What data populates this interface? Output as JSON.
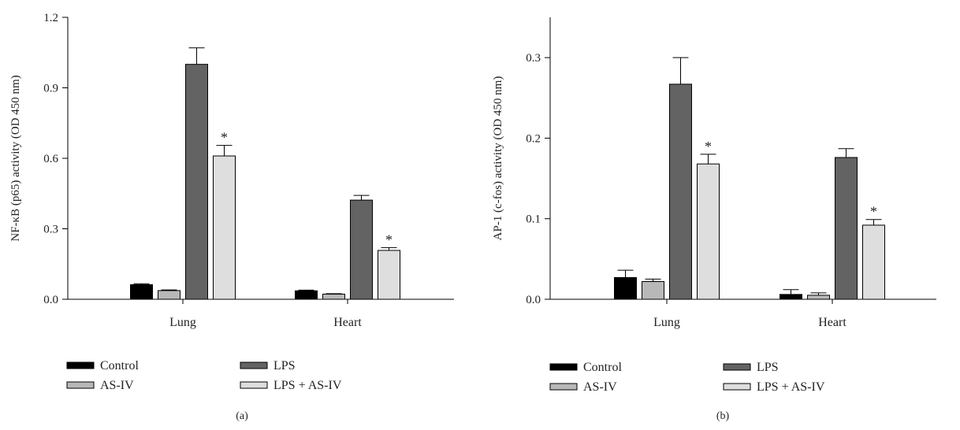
{
  "chart_data": [
    {
      "type": "bar",
      "panel_label": "(a)",
      "ylabel": "NF-κB (p65) activity (OD 450 nm)",
      "ylim": [
        0,
        1.2
      ],
      "yticks": [
        "0.0",
        "0.3",
        "0.6",
        "0.9",
        "1.2"
      ],
      "yticks_values": [
        0,
        0.3,
        0.6,
        0.9,
        1.2
      ],
      "categories": [
        "Lung",
        "Heart"
      ],
      "series": [
        {
          "name": "Control",
          "color": "#000000",
          "values": [
            0.062,
            0.036
          ],
          "errors": [
            0.004,
            0.003
          ],
          "significant": [
            false,
            false
          ]
        },
        {
          "name": "AS-IV",
          "color": "#b8b8b8",
          "values": [
            0.037,
            0.022
          ],
          "errors": [
            0.003,
            0.002
          ],
          "significant": [
            false,
            false
          ]
        },
        {
          "name": "LPS",
          "color": "#636363",
          "values": [
            1.0,
            0.422
          ],
          "errors": [
            0.07,
            0.02
          ],
          "significant": [
            false,
            false
          ]
        },
        {
          "name": "LPS + AS-IV",
          "color": "#dedede",
          "values": [
            0.61,
            0.208
          ],
          "errors": [
            0.045,
            0.012
          ],
          "significant": [
            true,
            true
          ]
        }
      ],
      "significance_marker": "*",
      "legend_placement": "bottom"
    },
    {
      "type": "bar",
      "panel_label": "(b)",
      "ylabel": "AP-1 (c-fos) activity (OD 450 nm)",
      "ylim": [
        0,
        0.35
      ],
      "yticks": [
        "0.0",
        "0.1",
        "0.2",
        "0.3"
      ],
      "yticks_values": [
        0,
        0.1,
        0.2,
        0.3
      ],
      "categories": [
        "Lung",
        "Heart"
      ],
      "series": [
        {
          "name": "Control",
          "color": "#000000",
          "values": [
            0.027,
            0.006
          ],
          "errors": [
            0.009,
            0.006
          ],
          "significant": [
            false,
            false
          ]
        },
        {
          "name": "AS-IV",
          "color": "#b8b8b8",
          "values": [
            0.022,
            0.005
          ],
          "errors": [
            0.003,
            0.003
          ],
          "significant": [
            false,
            false
          ]
        },
        {
          "name": "LPS",
          "color": "#636363",
          "values": [
            0.267,
            0.176
          ],
          "errors": [
            0.033,
            0.011
          ],
          "significant": [
            false,
            false
          ]
        },
        {
          "name": "LPS + AS-IV",
          "color": "#dedede",
          "values": [
            0.168,
            0.092
          ],
          "errors": [
            0.012,
            0.007
          ],
          "significant": [
            true,
            true
          ]
        }
      ],
      "significance_marker": "*",
      "legend_placement": "bottom"
    }
  ]
}
